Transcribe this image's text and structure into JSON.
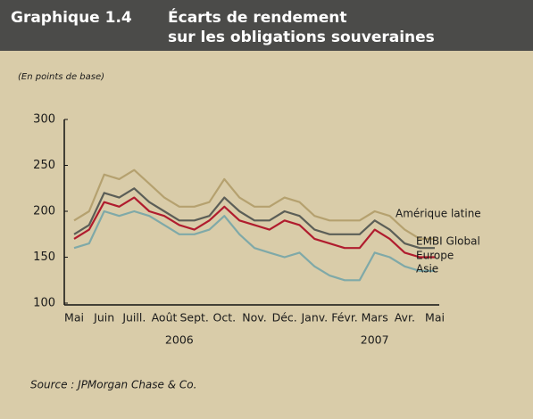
{
  "chart_data": {
    "type": "line",
    "label": "Graphique 1.4",
    "title": [
      "Écarts de rendement",
      "sur les obligations souveraines"
    ],
    "subtitle": "(En points de base)",
    "source": "Source : JPMorgan Chase & Co.",
    "categories": [
      "Mai",
      null,
      "Juin",
      null,
      "Juill.",
      null,
      "Août",
      null,
      "Sept.",
      null,
      "Oct.",
      null,
      "Nov.",
      null,
      "Déc.",
      null,
      "Janv.",
      null,
      "Févr.",
      null,
      "Mars",
      null,
      "Avr.",
      null,
      "Mai"
    ],
    "years": [
      "2006",
      "2007"
    ],
    "ylim": [
      100,
      300
    ],
    "yticks": [
      100,
      150,
      200,
      250,
      300
    ],
    "series": [
      {
        "name": "Amérique latine",
        "color": "#b5a16f",
        "values": [
          190,
          200,
          240,
          235,
          245,
          230,
          215,
          205,
          205,
          210,
          235,
          215,
          205,
          205,
          215,
          210,
          195,
          190,
          190,
          190,
          200,
          195,
          180,
          170,
          170
        ]
      },
      {
        "name": "EMBI Global",
        "color": "#5b5e57",
        "values": [
          175,
          185,
          220,
          215,
          225,
          210,
          200,
          190,
          190,
          195,
          215,
          200,
          190,
          190,
          200,
          195,
          180,
          175,
          175,
          175,
          190,
          180,
          165,
          160,
          160
        ]
      },
      {
        "name": "Europe",
        "color": "#b01c2e",
        "values": [
          170,
          180,
          210,
          205,
          215,
          200,
          195,
          185,
          180,
          190,
          205,
          190,
          185,
          180,
          190,
          185,
          170,
          165,
          160,
          160,
          180,
          170,
          155,
          150,
          150
        ]
      },
      {
        "name": "Asie",
        "color": "#7fa9a8",
        "values": [
          160,
          165,
          200,
          195,
          200,
          195,
          185,
          175,
          175,
          180,
          195,
          175,
          160,
          155,
          150,
          155,
          140,
          130,
          125,
          125,
          155,
          150,
          140,
          135,
          135
        ]
      }
    ]
  }
}
